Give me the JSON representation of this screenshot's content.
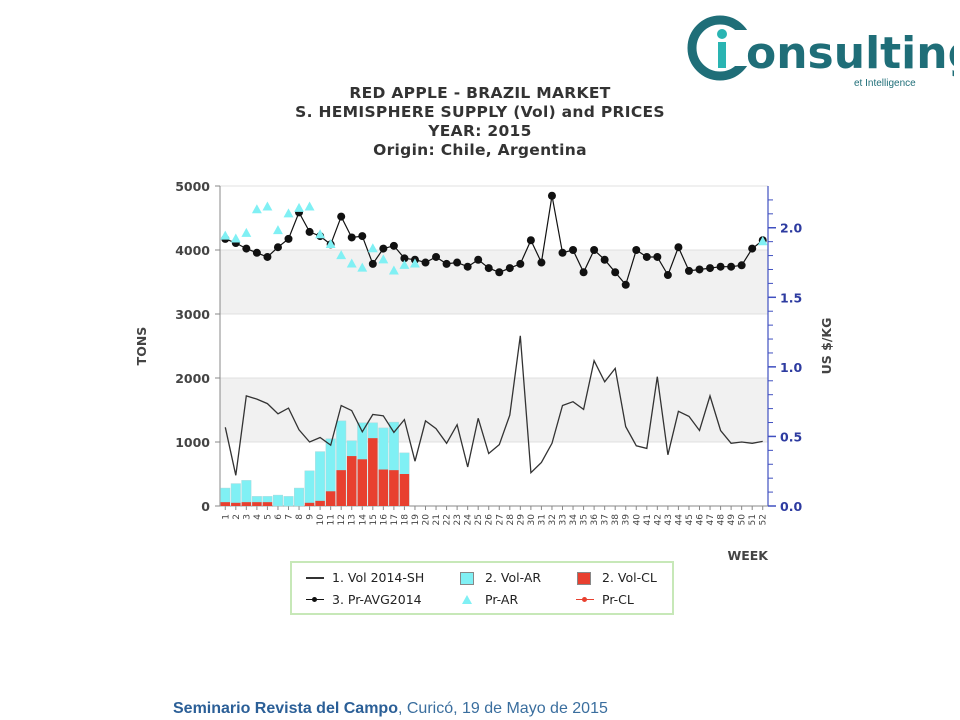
{
  "logo": {
    "word": "onsulting",
    "tagline": "et Intelligence",
    "color": "#1f6e78",
    "accent": "#2ab4b2"
  },
  "title": {
    "line1": "RED APPLE - BRAZIL MARKET",
    "line2": "S. HEMISPHERE SUPPLY (Vol) and PRICES",
    "line3": "YEAR: 2015",
    "line4": "Origin: Chile, Argentina"
  },
  "legend": {
    "items": [
      {
        "label": "1. Vol 2014-SH",
        "kind": "line",
        "color": "#333333"
      },
      {
        "label": "2. Vol-AR",
        "kind": "box",
        "color": "#80f0f4"
      },
      {
        "label": "2. Vol-CL",
        "kind": "box",
        "color": "#e8402f"
      },
      {
        "label": "3. Pr-AVG2014",
        "kind": "marker-circle",
        "color": "#111111"
      },
      {
        "label": "Pr-AR",
        "kind": "marker-triangle",
        "color": "#80f0f4"
      },
      {
        "label": "Pr-CL",
        "kind": "marker-circle",
        "color": "#e8402f"
      }
    ]
  },
  "footer": {
    "bold": "Seminario Revista del Campo",
    "rest": ", Curicó, 19 de Mayo de 2015"
  },
  "chart_data": {
    "type": "bar",
    "xlabel": "WEEK",
    "ylabel": "TONS",
    "y2label": "US $/KG",
    "ylim": [
      0,
      5000
    ],
    "y2lim": [
      0,
      2.3
    ],
    "yticks": [
      0,
      1000,
      2000,
      3000,
      4000,
      5000
    ],
    "y2ticks": [
      "0.0",
      "0.5",
      "1.0",
      "1.5",
      "2.0"
    ],
    "weeks": [
      "1",
      "2",
      "3",
      "4",
      "5",
      "6",
      "7",
      "8",
      "9",
      "10",
      "11",
      "12",
      "13",
      "14",
      "15",
      "16",
      "17",
      "18",
      "19",
      "20",
      "21",
      "22",
      "23",
      "24",
      "25",
      "26",
      "27",
      "28",
      "29",
      "30",
      "31",
      "32",
      "33",
      "34",
      "35",
      "36",
      "37",
      "38",
      "39",
      "40",
      "41",
      "42",
      "43",
      "44",
      "45",
      "46",
      "47",
      "48",
      "49",
      "50",
      "51",
      "52"
    ],
    "grid": true,
    "series": [
      {
        "name": "1. Vol 2014-SH",
        "kind": "line",
        "axis": "left",
        "values": [
          1230,
          480,
          1720,
          1670,
          1600,
          1440,
          1530,
          1190,
          1000,
          1070,
          950,
          1570,
          1490,
          1160,
          1430,
          1410,
          1150,
          1350,
          700,
          1330,
          1210,
          980,
          1270,
          610,
          1370,
          820,
          960,
          1420,
          2660,
          520,
          680,
          980,
          1570,
          1630,
          1510,
          2270,
          1940,
          2150,
          1240,
          940,
          900,
          2020,
          800,
          1480,
          1400,
          1180,
          1720,
          1180,
          980,
          1000,
          980,
          1010
        ]
      },
      {
        "name": "2. Vol-AR",
        "kind": "bar",
        "axis": "left",
        "values": [
          280,
          350,
          400,
          150,
          150,
          170,
          150,
          280,
          550,
          850,
          1050,
          1330,
          1020,
          1300,
          1300,
          1220,
          1310,
          830,
          null,
          null,
          null,
          null,
          null,
          null,
          null,
          null,
          null,
          null,
          null,
          null,
          null,
          null,
          null,
          null,
          null,
          null,
          null,
          null,
          null,
          null,
          null,
          null,
          null,
          null,
          null,
          null,
          null,
          null,
          null,
          null,
          null,
          null
        ]
      },
      {
        "name": "2. Vol-CL",
        "kind": "bar",
        "axis": "left",
        "values": [
          60,
          50,
          60,
          60,
          60,
          0,
          0,
          0,
          50,
          80,
          230,
          560,
          780,
          730,
          1060,
          570,
          560,
          500,
          null,
          null,
          null,
          null,
          null,
          null,
          null,
          null,
          null,
          null,
          null,
          null,
          null,
          null,
          null,
          null,
          null,
          null,
          null,
          null,
          null,
          null,
          null,
          null,
          null,
          null,
          null,
          null,
          null,
          null,
          null,
          null,
          null,
          null
        ]
      },
      {
        "name": "3. Pr-AVG2014",
        "kind": "line-marker",
        "axis": "right",
        "values": [
          1.92,
          1.89,
          1.85,
          1.82,
          1.79,
          1.86,
          1.92,
          2.11,
          1.97,
          1.94,
          1.88,
          2.08,
          1.93,
          1.94,
          1.74,
          1.85,
          1.87,
          1.78,
          1.77,
          1.75,
          1.79,
          1.74,
          1.75,
          1.72,
          1.77,
          1.71,
          1.68,
          1.71,
          1.74,
          1.91,
          1.75,
          2.23,
          1.82,
          1.84,
          1.68,
          1.84,
          1.77,
          1.68,
          1.59,
          1.84,
          1.79,
          1.79,
          1.66,
          1.86,
          1.69,
          1.7,
          1.71,
          1.72,
          1.72,
          1.73,
          1.85,
          1.91
        ]
      },
      {
        "name": "Pr-AR",
        "kind": "marker-triangle",
        "axis": "right",
        "values": [
          1.94,
          1.92,
          1.96,
          2.13,
          2.15,
          1.98,
          2.1,
          2.14,
          2.15,
          1.95,
          1.88,
          1.8,
          1.74,
          1.71,
          1.85,
          1.77,
          1.69,
          1.73,
          1.74,
          null,
          null,
          null,
          null,
          null,
          null,
          null,
          null,
          null,
          null,
          null,
          null,
          null,
          null,
          null,
          null,
          null,
          null,
          null,
          null,
          null,
          null,
          null,
          null,
          null,
          null,
          null,
          null,
          null,
          null,
          null,
          null,
          1.9
        ]
      }
    ]
  }
}
